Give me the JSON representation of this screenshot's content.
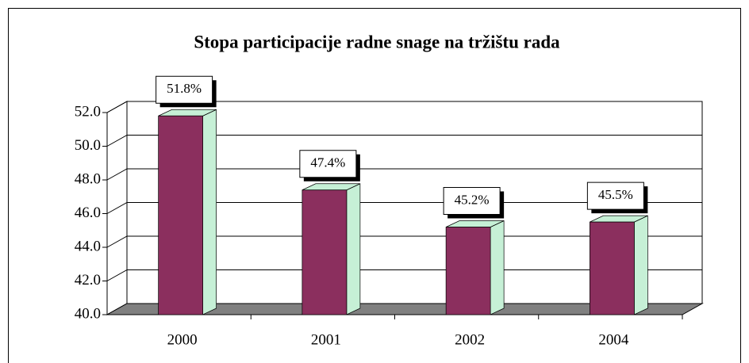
{
  "chart_data": {
    "type": "bar",
    "title": "Stopa participacije radne snage na tržištu rada",
    "categories": [
      "2000",
      "2001",
      "2002",
      "2004"
    ],
    "values": [
      51.8,
      47.4,
      45.2,
      45.5
    ],
    "value_labels": [
      "51.8%",
      "47.4%",
      "45.2%",
      "45.5%"
    ],
    "color": "#8b2f5e",
    "side_color": "#c6f0d6",
    "ylim": [
      40,
      52
    ],
    "yticks": [
      {
        "value": 40,
        "label": "40.0"
      },
      {
        "value": 42,
        "label": "42.0"
      },
      {
        "value": 44,
        "label": "44.0"
      },
      {
        "value": 46,
        "label": "46.0"
      },
      {
        "value": 48,
        "label": "48.0"
      },
      {
        "value": 50,
        "label": "50.0"
      },
      {
        "value": 52,
        "label": "52.0"
      }
    ],
    "grid": true
  }
}
